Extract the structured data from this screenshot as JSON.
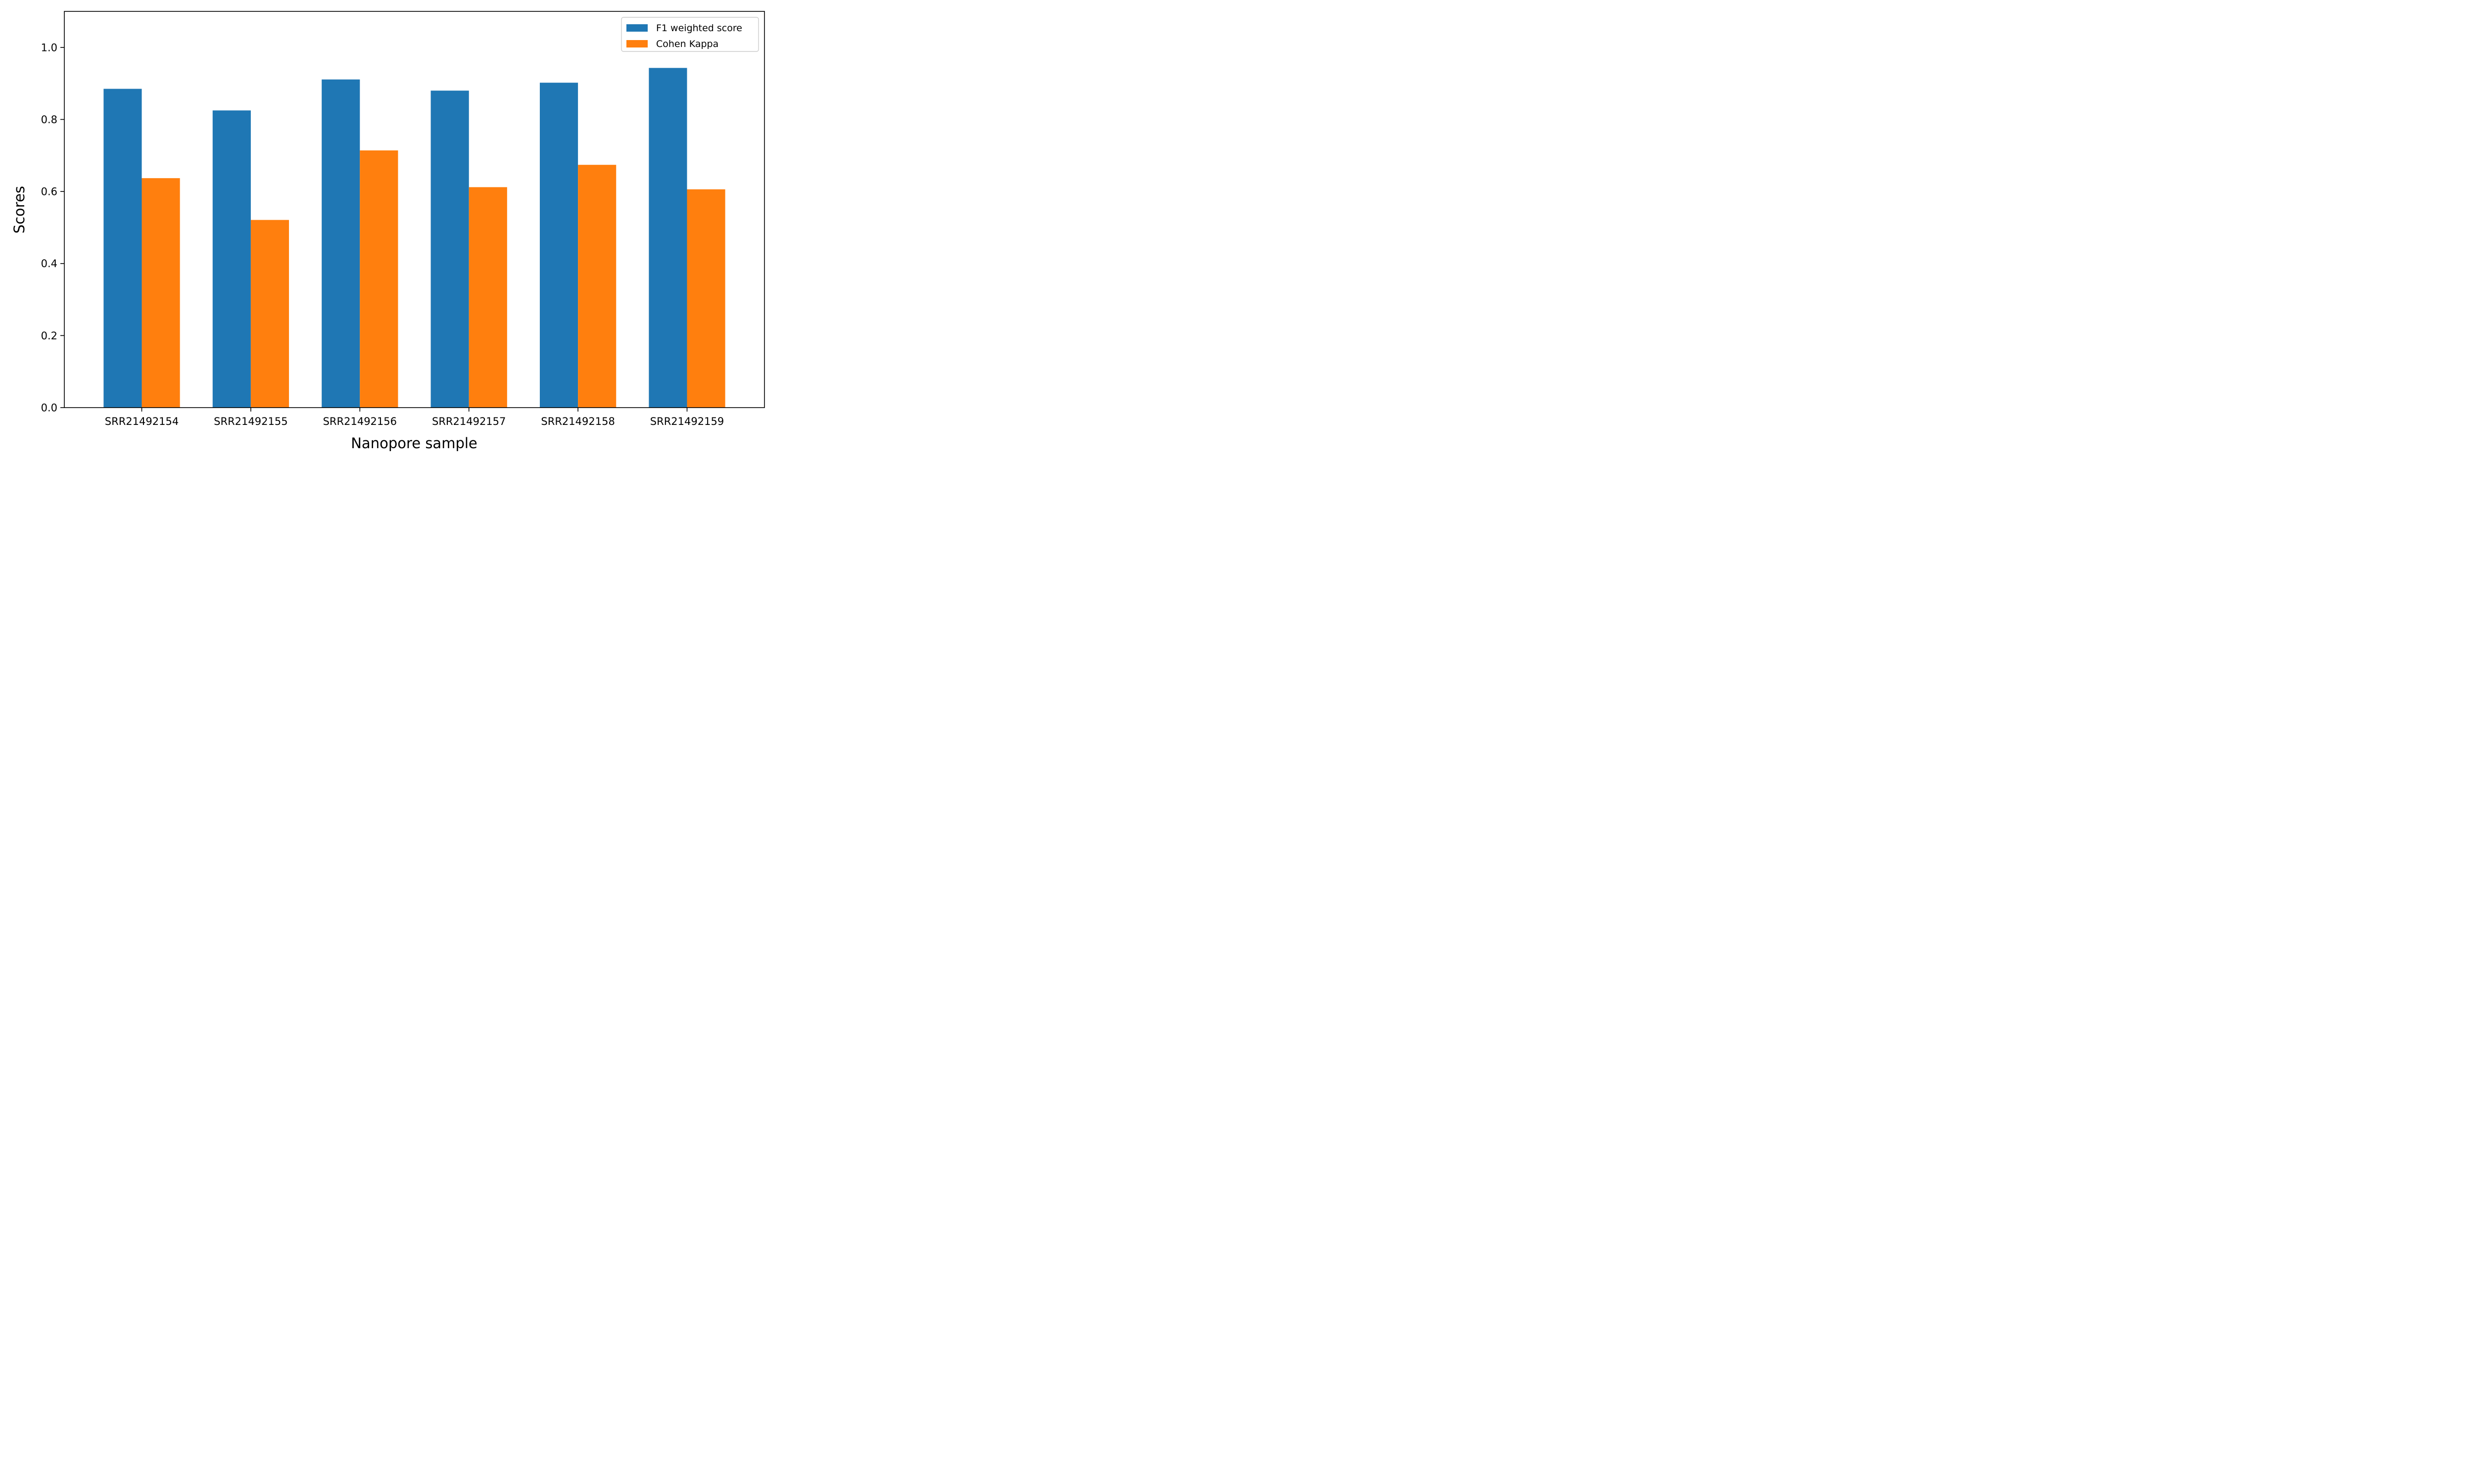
{
  "chart_data": {
    "type": "bar",
    "title": "",
    "xlabel": "Nanopore sample",
    "ylabel": "Scores",
    "categories": [
      "SRR21492154",
      "SRR21492155",
      "SRR21492156",
      "SRR21492157",
      "SRR21492158",
      "SRR21492159"
    ],
    "series": [
      {
        "name": "F1 weighted score",
        "color": "#1f77b4",
        "values": [
          0.885,
          0.825,
          0.911,
          0.88,
          0.902,
          0.943
        ]
      },
      {
        "name": "Cohen Kappa",
        "color": "#ff7f0e",
        "values": [
          0.637,
          0.521,
          0.714,
          0.612,
          0.674,
          0.606
        ]
      }
    ],
    "ylim": [
      0,
      1.1
    ],
    "yticks": [
      0.0,
      0.2,
      0.4,
      0.6,
      0.8,
      1.0
    ],
    "ytick_labels": [
      "0.0",
      "0.2",
      "0.4",
      "0.6",
      "0.8",
      "1.0"
    ],
    "grid": false,
    "legend_position": "top-right"
  }
}
